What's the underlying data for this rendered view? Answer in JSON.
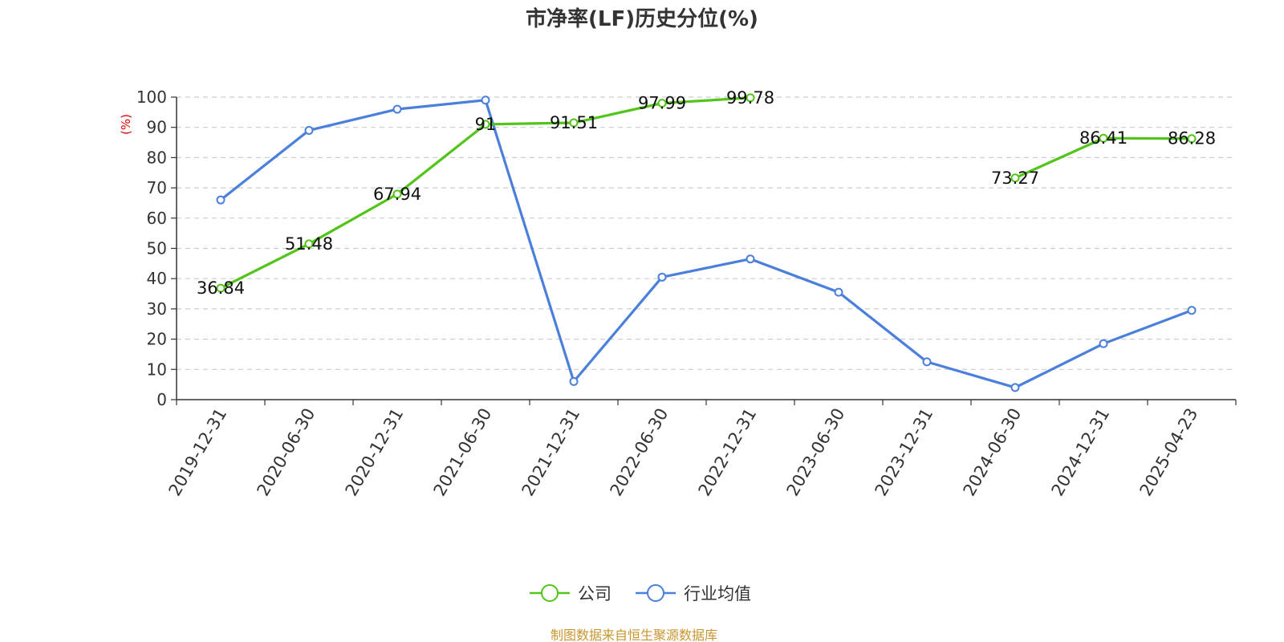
{
  "chart_data": {
    "type": "line",
    "title": "市净率(LF)历史分位(%)",
    "ylabel": "(%)",
    "ylim": [
      0,
      100
    ],
    "yticks": [
      0,
      10,
      20,
      30,
      40,
      50,
      60,
      70,
      80,
      90,
      100
    ],
    "grid": true,
    "legend_position": "bottom",
    "categories": [
      "2019-12-31",
      "2020-06-30",
      "2020-12-31",
      "2021-06-30",
      "2021-12-31",
      "2022-06-30",
      "2022-12-31",
      "2023-06-30",
      "2023-12-31",
      "2024-06-30",
      "2024-12-31",
      "2025-04-23"
    ],
    "series": [
      {
        "name": "公司",
        "color": "#52c41a",
        "values": [
          36.84,
          51.48,
          67.94,
          91,
          91.51,
          97.99,
          99.78,
          null,
          null,
          73.27,
          86.41,
          86.28
        ],
        "labels": [
          "36.84",
          "51.48",
          "67.94",
          "91",
          "91.51",
          "97.99",
          "99.78",
          "",
          "",
          "73.27",
          "86.41",
          "86.28"
        ]
      },
      {
        "name": "行业均值",
        "color": "#4a7fdc",
        "values": [
          66,
          89,
          96,
          99,
          6,
          40.5,
          46.5,
          35.5,
          12.5,
          4,
          18.5,
          29.5
        ],
        "labels": []
      }
    ]
  },
  "source": "制图数据来自恒生聚源数据库"
}
